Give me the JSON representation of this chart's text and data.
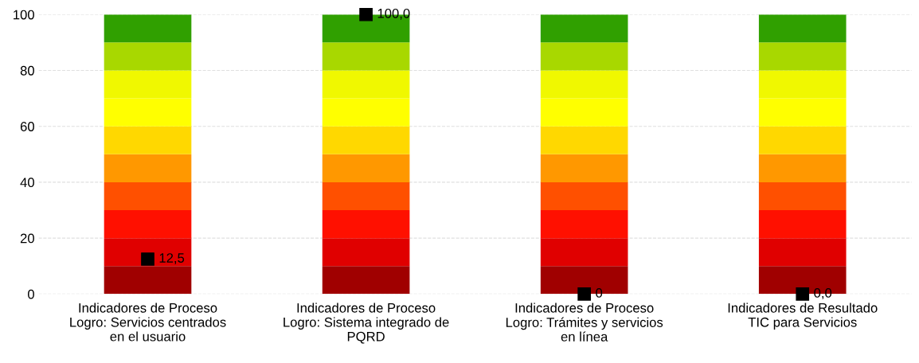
{
  "chart_data": {
    "type": "bar",
    "stacked": true,
    "categories": [
      "Indicadores de Proceso\nLogro: Servicios centrados\nen el usuario",
      "Indicadores de Proceso\nLogro: Sistema integrado de\nPQRD",
      "Indicadores de Proceso\nLogro: Trámites y servicios\nen línea",
      "Indicadores de Resultado\nTIC para Servicios"
    ],
    "series": [
      {
        "color": "#a00000",
        "values": [
          10,
          10,
          10,
          10
        ]
      },
      {
        "color": "#e00000",
        "values": [
          10,
          10,
          10,
          10
        ]
      },
      {
        "color": "#ff1000",
        "values": [
          10,
          10,
          10,
          10
        ]
      },
      {
        "color": "#ff5000",
        "values": [
          10,
          10,
          10,
          10
        ]
      },
      {
        "color": "#ff9800",
        "values": [
          10,
          10,
          10,
          10
        ]
      },
      {
        "color": "#ffd800",
        "values": [
          10,
          10,
          10,
          10
        ]
      },
      {
        "color": "#ffff00",
        "values": [
          10,
          10,
          10,
          10
        ]
      },
      {
        "color": "#f0f800",
        "values": [
          10,
          10,
          10,
          10
        ]
      },
      {
        "color": "#a8d800",
        "values": [
          10,
          10,
          10,
          10
        ]
      },
      {
        "color": "#30a000",
        "values": [
          10,
          10,
          10,
          10
        ]
      },
      {
        "type": "scatter",
        "marker": "square",
        "color": "#000000",
        "values": [
          12.5,
          100,
          0,
          0
        ],
        "value_labels": [
          "12,5",
          "100,0",
          "0",
          "0,0"
        ]
      }
    ],
    "ylim": [
      0,
      100
    ],
    "yticks": [
      0,
      20,
      40,
      60,
      80,
      100
    ],
    "grid": "y"
  }
}
